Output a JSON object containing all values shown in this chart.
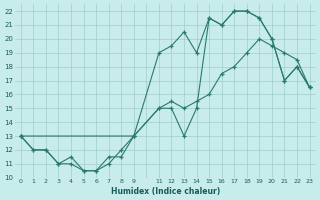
{
  "xlabel": "Humidex (Indice chaleur)",
  "xlim": [
    -0.5,
    23.5
  ],
  "ylim": [
    10,
    22.5
  ],
  "background_color": "#c8ecec",
  "grid_color": "#a0cccc",
  "line_color": "#2a7a6a",
  "line1_x": [
    0,
    1,
    2,
    3,
    4,
    5,
    6,
    7,
    8,
    9,
    11,
    12,
    13,
    14,
    15,
    16,
    17,
    18,
    19,
    20,
    21,
    22,
    23
  ],
  "line1_y": [
    13,
    12,
    12,
    11,
    11,
    10.5,
    10.5,
    11.5,
    11.5,
    13,
    15,
    15,
    13,
    15,
    21.5,
    21,
    22,
    22,
    21.5,
    20,
    17,
    18,
    16.5
  ],
  "line2_x": [
    0,
    1,
    2,
    3,
    4,
    5,
    6,
    7,
    8,
    9,
    11,
    12,
    13,
    14,
    15,
    16,
    17,
    18,
    19,
    20,
    21,
    22,
    23
  ],
  "line2_y": [
    13,
    12,
    12,
    11,
    11.5,
    10.5,
    10.5,
    11,
    12,
    13,
    19,
    19.5,
    20.5,
    19,
    21.5,
    21,
    22,
    22,
    21.5,
    20,
    17,
    18,
    16.5
  ],
  "line3_x": [
    0,
    9,
    11,
    12,
    13,
    14,
    15,
    16,
    17,
    18,
    19,
    20,
    21,
    22,
    23
  ],
  "line3_y": [
    13,
    13,
    15,
    15.5,
    15,
    15.5,
    16,
    17.5,
    18,
    19,
    20,
    19.5,
    19,
    18.5,
    16.5
  ],
  "yticks": [
    10,
    11,
    12,
    13,
    14,
    15,
    16,
    17,
    18,
    19,
    20,
    21,
    22
  ],
  "xtick_vals": [
    0,
    1,
    2,
    3,
    4,
    5,
    6,
    7,
    8,
    9,
    10,
    11,
    12,
    13,
    14,
    15,
    16,
    17,
    18,
    19,
    20,
    21,
    22,
    23
  ],
  "xtick_labels": [
    "0",
    "1",
    "2",
    "3",
    "4",
    "5",
    "6",
    "7",
    "8",
    "9",
    "",
    "11",
    "12",
    "13",
    "14",
    "15",
    "16",
    "17",
    "18",
    "19",
    "20",
    "21",
    "22",
    "23"
  ]
}
